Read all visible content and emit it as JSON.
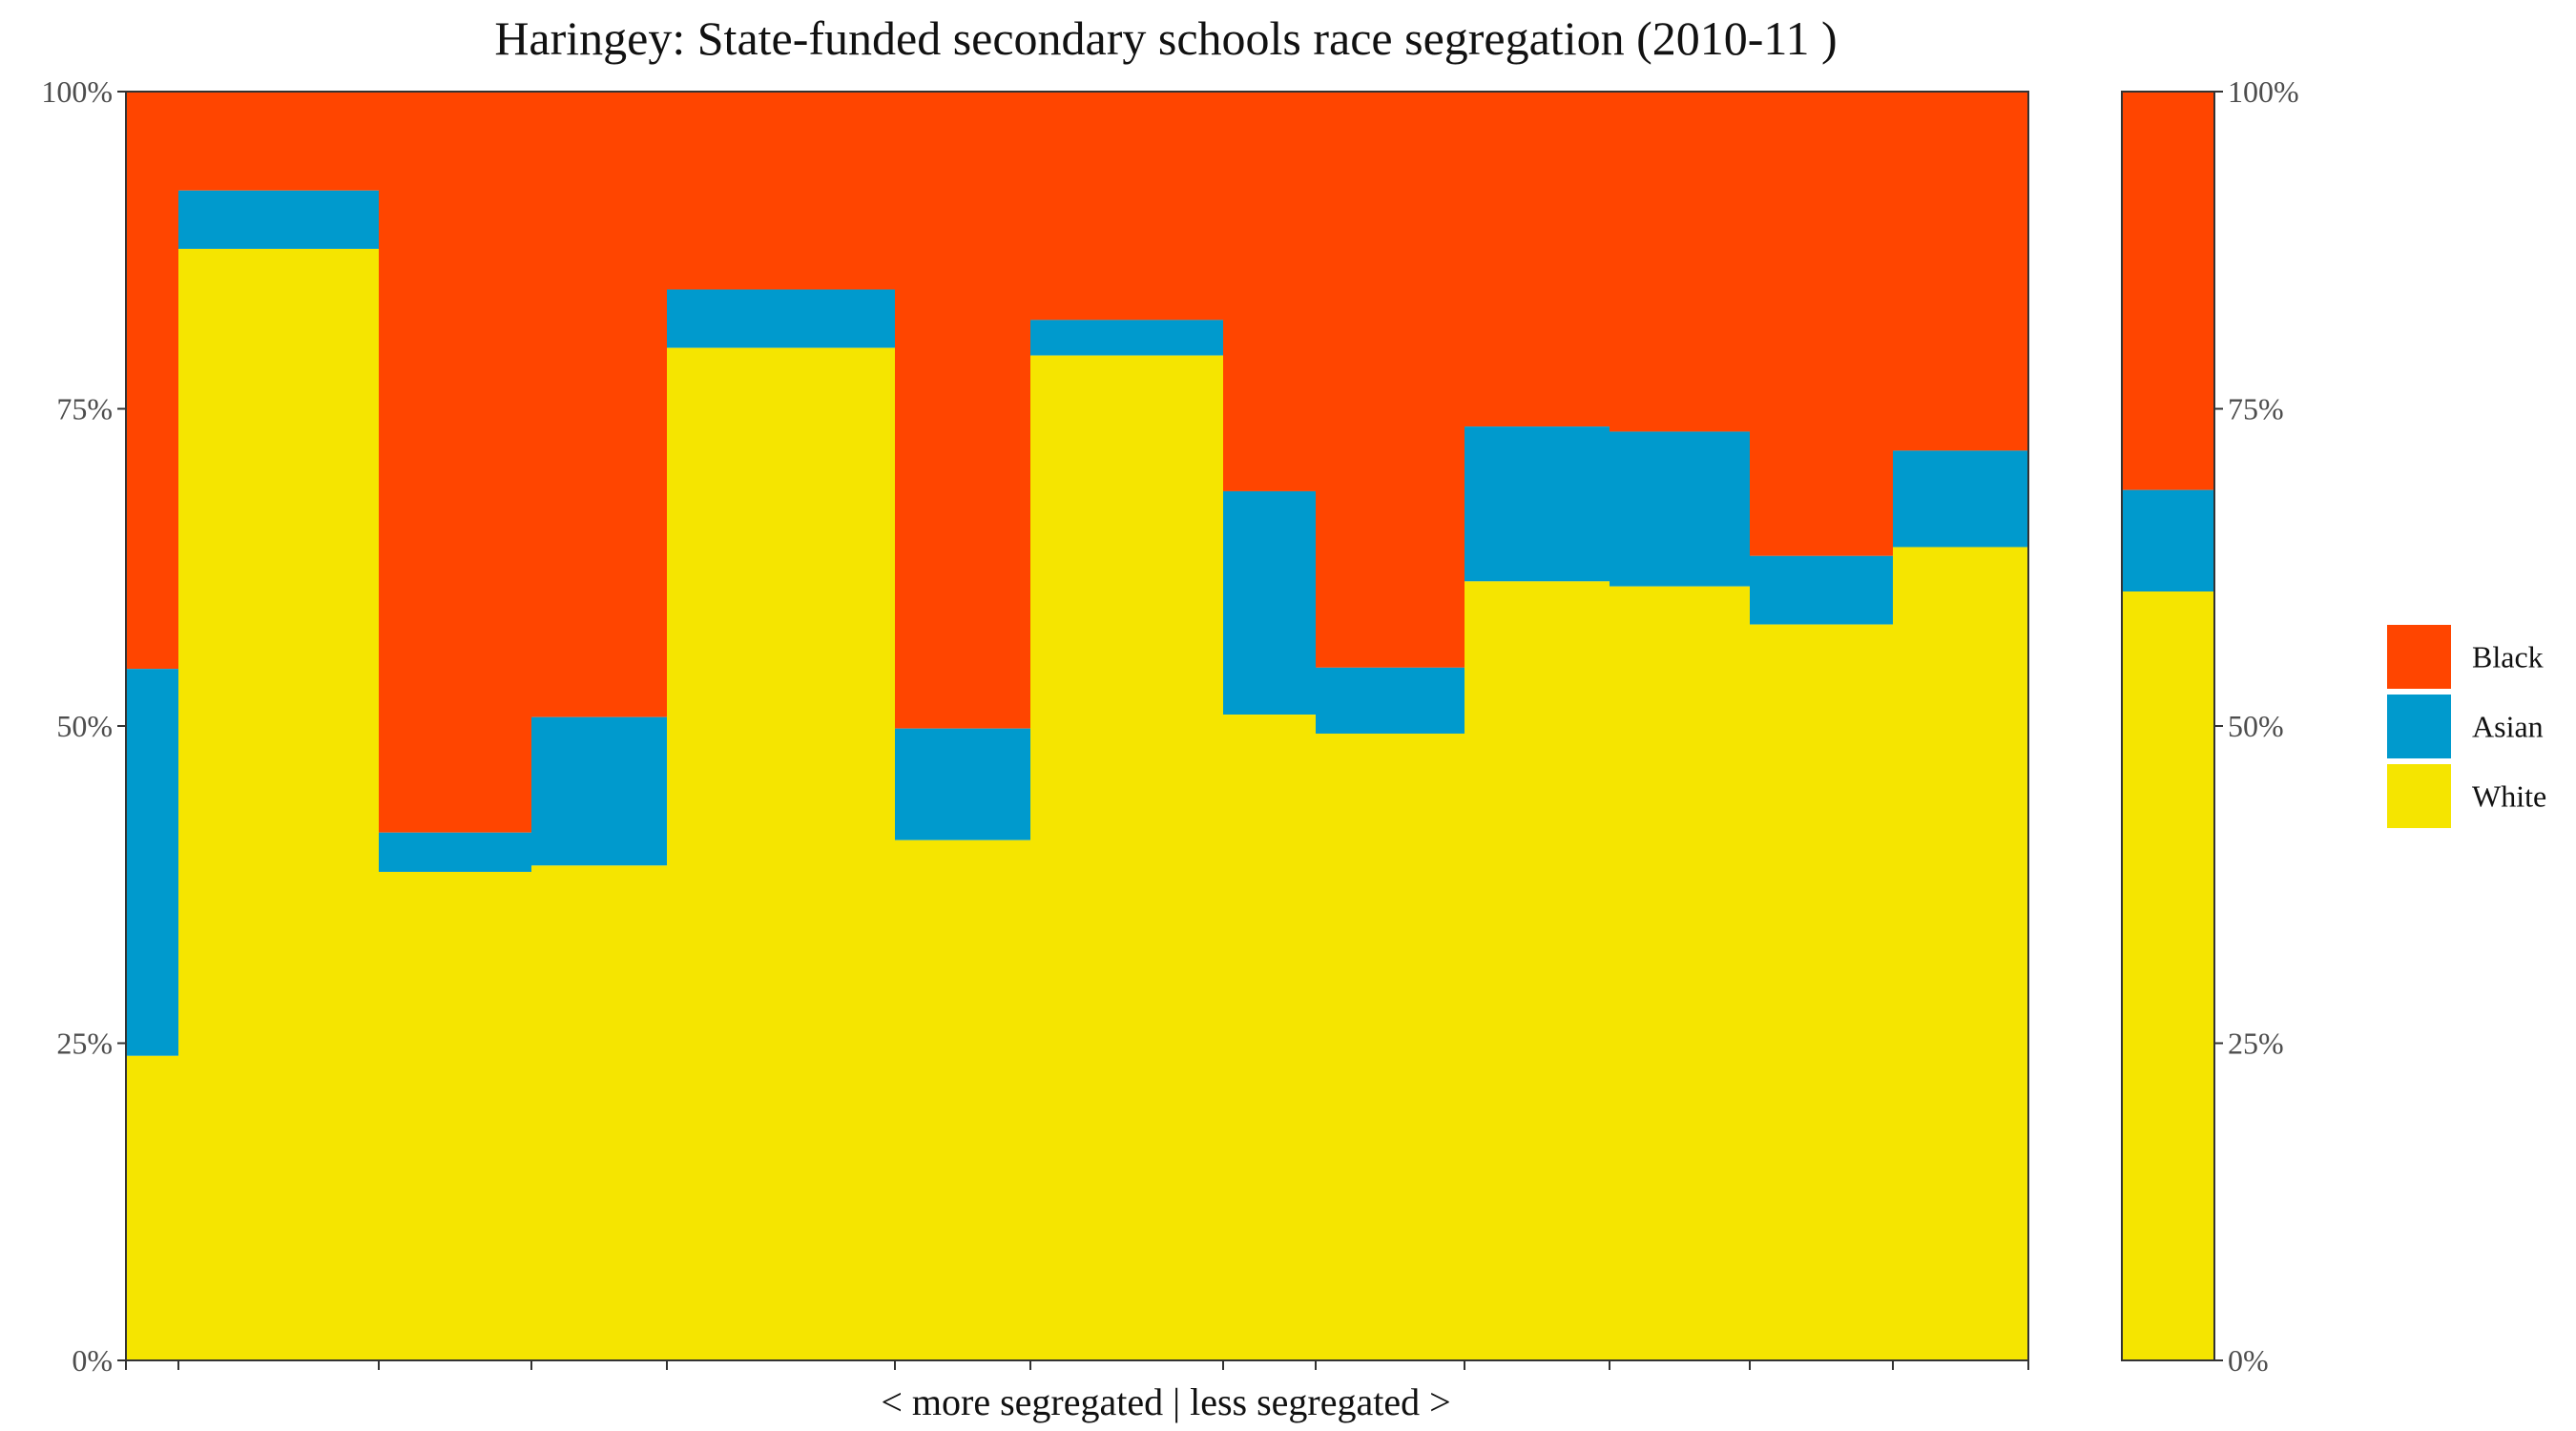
{
  "chart_data": {
    "type": "bar",
    "subtype": "stacked-variable-width (marimekko)",
    "title": "Haringey: State-funded secondary schools race segregation (2010-11 )",
    "xlabel": "< more segregated | less segregated >",
    "ylabel": "",
    "ylim": [
      0,
      100
    ],
    "y_ticks": [
      "0%",
      "25%",
      "50%",
      "75%",
      "100%"
    ],
    "y_tick_values": [
      0,
      25,
      50,
      75,
      100
    ],
    "grid": false,
    "legend_position": "right",
    "stack_order_bottom_to_top": [
      "White",
      "Asian",
      "Black"
    ],
    "legend_order": [
      "Black",
      "Asian",
      "White"
    ],
    "colors": {
      "Black": "#FF4500",
      "Asian": "#009ACD",
      "White": "#F5E500"
    },
    "x_range": [
      0,
      1994
    ],
    "x_tick_positions": [
      0,
      55,
      265,
      425,
      567,
      806,
      948,
      1150,
      1247,
      1403,
      1555,
      1702,
      1852,
      1994
    ],
    "columns": [
      {
        "x0": 0,
        "x1": 55,
        "White": 24.0,
        "Asian": 30.5
      },
      {
        "x0": 55,
        "x1": 265,
        "White": 87.6,
        "Asian": 4.6
      },
      {
        "x0": 265,
        "x1": 425,
        "White": 38.5,
        "Asian": 3.1
      },
      {
        "x0": 425,
        "x1": 567,
        "White": 39.0,
        "Asian": 11.7
      },
      {
        "x0": 567,
        "x1": 806,
        "White": 79.8,
        "Asian": 4.6
      },
      {
        "x0": 806,
        "x1": 948,
        "White": 41.0,
        "Asian": 8.8
      },
      {
        "x0": 948,
        "x1": 1150,
        "White": 79.2,
        "Asian": 2.8
      },
      {
        "x0": 1150,
        "x1": 1247,
        "White": 50.9,
        "Asian": 17.6
      },
      {
        "x0": 1247,
        "x1": 1403,
        "White": 49.4,
        "Asian": 5.2
      },
      {
        "x0": 1403,
        "x1": 1555,
        "White": 61.4,
        "Asian": 12.2
      },
      {
        "x0": 1555,
        "x1": 1702,
        "White": 61.0,
        "Asian": 12.2
      },
      {
        "x0": 1702,
        "x1": 1852,
        "White": 58.0,
        "Asian": 5.4
      },
      {
        "x0": 1852,
        "x1": 1994,
        "White": 64.1,
        "Asian": 7.6
      }
    ],
    "summary_bar": {
      "White": 60.6,
      "Asian": 8.0
    }
  }
}
